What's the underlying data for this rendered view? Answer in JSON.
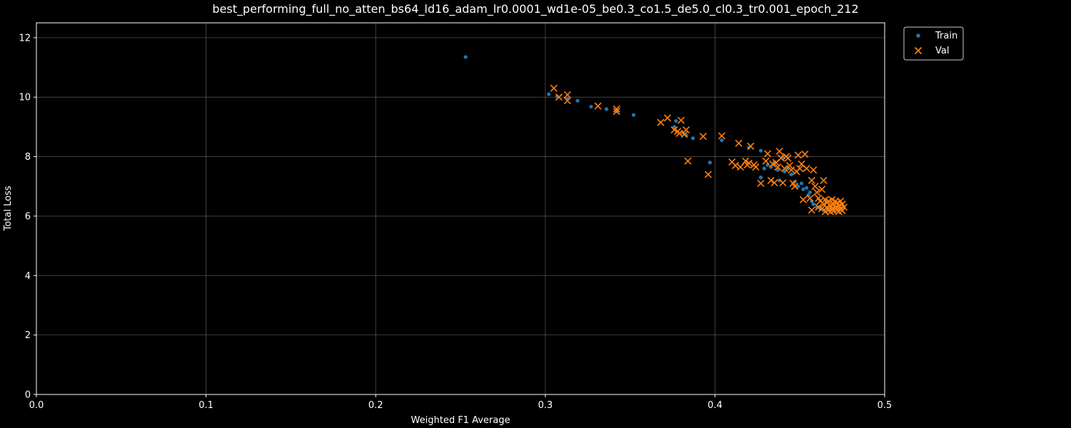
{
  "chart_data": {
    "type": "scatter",
    "title": "best_performing_full_no_atten_bs64_ld16_adam_lr0.0001_wd1e-05_be0.3_co1.5_de5.0_cl0.3_tr0.001_epoch_212",
    "xlabel": "Weighted F1 Average",
    "ylabel": "Total Loss",
    "xlim": [
      0.0,
      0.5
    ],
    "ylim": [
      0,
      12.5
    ],
    "xticks": [
      "0.0",
      "0.1",
      "0.2",
      "0.3",
      "0.4",
      "0.5"
    ],
    "yticks": [
      "0",
      "2",
      "4",
      "6",
      "8",
      "10",
      "12"
    ],
    "grid": true,
    "legend_position": "outside-top-right",
    "background": "#000000",
    "series": [
      {
        "name": "Train",
        "marker": "dot",
        "color": "#1f77b4",
        "points": [
          [
            0.253,
            11.35
          ],
          [
            0.302,
            10.1
          ],
          [
            0.307,
            10.02
          ],
          [
            0.313,
            9.95
          ],
          [
            0.319,
            9.88
          ],
          [
            0.327,
            9.68
          ],
          [
            0.336,
            9.6
          ],
          [
            0.342,
            9.52
          ],
          [
            0.352,
            9.4
          ],
          [
            0.376,
            9.0
          ],
          [
            0.377,
            9.2
          ],
          [
            0.381,
            8.8
          ],
          [
            0.383,
            8.72
          ],
          [
            0.387,
            8.62
          ],
          [
            0.397,
            7.8
          ],
          [
            0.404,
            8.55
          ],
          [
            0.42,
            8.3
          ],
          [
            0.427,
            8.2
          ],
          [
            0.427,
            7.3
          ],
          [
            0.429,
            7.6
          ],
          [
            0.431,
            7.72
          ],
          [
            0.433,
            7.65
          ],
          [
            0.435,
            7.8
          ],
          [
            0.437,
            7.55
          ],
          [
            0.438,
            7.2
          ],
          [
            0.44,
            8.0
          ],
          [
            0.441,
            7.5
          ],
          [
            0.443,
            7.6
          ],
          [
            0.445,
            7.4
          ],
          [
            0.447,
            7.15
          ],
          [
            0.449,
            7.0
          ],
          [
            0.451,
            7.1
          ],
          [
            0.452,
            6.9
          ],
          [
            0.454,
            6.95
          ],
          [
            0.455,
            6.7
          ],
          [
            0.456,
            6.8
          ],
          [
            0.457,
            6.5
          ],
          [
            0.458,
            6.4
          ],
          [
            0.46,
            6.3
          ],
          [
            0.462,
            6.25
          ],
          [
            0.464,
            6.2
          ],
          [
            0.466,
            6.25
          ],
          [
            0.468,
            6.3
          ],
          [
            0.47,
            6.2
          ],
          [
            0.472,
            6.3
          ],
          [
            0.474,
            6.25
          ]
        ]
      },
      {
        "name": "Val",
        "marker": "x",
        "color": "#ff7f0e",
        "points": [
          [
            0.305,
            10.3
          ],
          [
            0.308,
            10.0
          ],
          [
            0.313,
            10.08
          ],
          [
            0.313,
            9.88
          ],
          [
            0.331,
            9.7
          ],
          [
            0.342,
            9.6
          ],
          [
            0.342,
            9.52
          ],
          [
            0.368,
            9.15
          ],
          [
            0.372,
            9.3
          ],
          [
            0.376,
            8.9
          ],
          [
            0.378,
            8.85
          ],
          [
            0.379,
            8.78
          ],
          [
            0.38,
            9.22
          ],
          [
            0.382,
            8.75
          ],
          [
            0.383,
            8.9
          ],
          [
            0.384,
            7.85
          ],
          [
            0.393,
            8.68
          ],
          [
            0.396,
            7.4
          ],
          [
            0.404,
            8.7
          ],
          [
            0.41,
            7.82
          ],
          [
            0.412,
            7.7
          ],
          [
            0.414,
            8.45
          ],
          [
            0.415,
            7.65
          ],
          [
            0.418,
            7.85
          ],
          [
            0.419,
            7.72
          ],
          [
            0.42,
            7.78
          ],
          [
            0.421,
            8.35
          ],
          [
            0.423,
            7.72
          ],
          [
            0.424,
            7.65
          ],
          [
            0.427,
            7.1
          ],
          [
            0.43,
            7.85
          ],
          [
            0.431,
            8.1
          ],
          [
            0.433,
            7.2
          ],
          [
            0.434,
            7.75
          ],
          [
            0.435,
            7.12
          ],
          [
            0.436,
            7.8
          ],
          [
            0.437,
            7.65
          ],
          [
            0.438,
            8.18
          ],
          [
            0.439,
            7.95
          ],
          [
            0.44,
            7.12
          ],
          [
            0.441,
            7.6
          ],
          [
            0.442,
            8.0
          ],
          [
            0.443,
            7.95
          ],
          [
            0.444,
            7.7
          ],
          [
            0.445,
            7.55
          ],
          [
            0.446,
            7.1
          ],
          [
            0.447,
            7.0
          ],
          [
            0.448,
            7.5
          ],
          [
            0.449,
            8.05
          ],
          [
            0.45,
            7.6
          ],
          [
            0.451,
            7.75
          ],
          [
            0.452,
            6.55
          ],
          [
            0.453,
            8.08
          ],
          [
            0.454,
            7.6
          ],
          [
            0.456,
            6.6
          ],
          [
            0.457,
            7.2
          ],
          [
            0.457,
            6.2
          ],
          [
            0.458,
            7.55
          ],
          [
            0.459,
            7.0
          ],
          [
            0.46,
            6.8
          ],
          [
            0.461,
            6.6
          ],
          [
            0.461,
            6.3
          ],
          [
            0.462,
            6.5
          ],
          [
            0.463,
            6.9
          ],
          [
            0.463,
            6.25
          ],
          [
            0.464,
            7.2
          ],
          [
            0.464,
            6.4
          ],
          [
            0.465,
            6.15
          ],
          [
            0.465,
            6.55
          ],
          [
            0.466,
            6.3
          ],
          [
            0.466,
            6.45
          ],
          [
            0.467,
            6.2
          ],
          [
            0.467,
            6.5
          ],
          [
            0.468,
            6.35
          ],
          [
            0.468,
            6.15
          ],
          [
            0.469,
            6.25
          ],
          [
            0.469,
            6.55
          ],
          [
            0.47,
            6.4
          ],
          [
            0.47,
            6.18
          ],
          [
            0.471,
            6.3
          ],
          [
            0.471,
            6.5
          ],
          [
            0.472,
            6.2
          ],
          [
            0.472,
            6.45
          ],
          [
            0.473,
            6.35
          ],
          [
            0.473,
            6.15
          ],
          [
            0.474,
            6.5
          ],
          [
            0.474,
            6.25
          ],
          [
            0.475,
            6.4
          ],
          [
            0.475,
            6.18
          ],
          [
            0.476,
            6.3
          ]
        ]
      }
    ]
  }
}
